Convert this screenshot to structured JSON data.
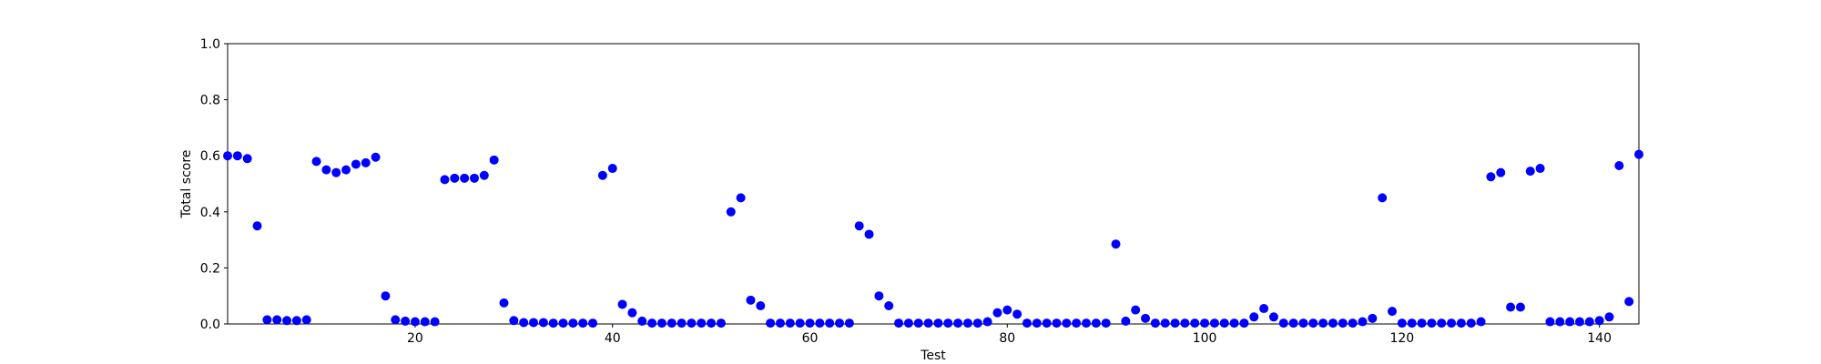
{
  "chart_data": {
    "type": "scatter",
    "title": "",
    "xlabel": "Test",
    "ylabel": "Total score",
    "xlim": [
      1,
      144
    ],
    "ylim": [
      0.0,
      1.0
    ],
    "x_ticks": [
      20,
      40,
      60,
      80,
      100,
      120,
      140
    ],
    "x_tick_labels": [
      "20",
      "40",
      "60",
      "80",
      "100",
      "120",
      "140"
    ],
    "y_ticks": [
      0.0,
      0.2,
      0.4,
      0.6,
      0.8,
      1.0
    ],
    "y_tick_labels": [
      "0.0",
      "0.2",
      "0.4",
      "0.6",
      "0.8",
      "1.0"
    ],
    "grid": false,
    "marker_color": "#0000ff",
    "series": [
      {
        "x": [
          1,
          2,
          3,
          4,
          5,
          6,
          7,
          8,
          9,
          10,
          11,
          12,
          13,
          14,
          15,
          16,
          17,
          18,
          19,
          20,
          21,
          22,
          23,
          24,
          25,
          26,
          27,
          28,
          29,
          30,
          31,
          32,
          33,
          34,
          35,
          36,
          37,
          38,
          39,
          40,
          41,
          42,
          43,
          44,
          45,
          46,
          47,
          48,
          49,
          50,
          51,
          52,
          53,
          54,
          55,
          56,
          57,
          58,
          59,
          60,
          61,
          62,
          63,
          64,
          65,
          66,
          67,
          68,
          69,
          70,
          71,
          72,
          73,
          74,
          75,
          76,
          77,
          78,
          79,
          80,
          81,
          82,
          83,
          84,
          85,
          86,
          87,
          88,
          89,
          90,
          91,
          92,
          93,
          94,
          95,
          96,
          97,
          98,
          99,
          100,
          101,
          102,
          103,
          104,
          105,
          106,
          107,
          108,
          109,
          110,
          111,
          112,
          113,
          114,
          115,
          116,
          117,
          118,
          119,
          120,
          121,
          122,
          123,
          124,
          125,
          126,
          127,
          128,
          129,
          130,
          131,
          132,
          133,
          134,
          135,
          136,
          137,
          138,
          139,
          140,
          141,
          142,
          143,
          144
        ],
        "y": [
          0.6,
          0.6,
          0.59,
          0.35,
          0.015,
          0.015,
          0.012,
          0.012,
          0.015,
          0.58,
          0.55,
          0.54,
          0.55,
          0.57,
          0.575,
          0.595,
          0.1,
          0.015,
          0.01,
          0.008,
          0.008,
          0.008,
          0.515,
          0.52,
          0.52,
          0.52,
          0.53,
          0.585,
          0.075,
          0.012,
          0.005,
          0.005,
          0.005,
          0.003,
          0.003,
          0.003,
          0.003,
          0.003,
          0.53,
          0.555,
          0.07,
          0.04,
          0.01,
          0.003,
          0.003,
          0.003,
          0.003,
          0.003,
          0.003,
          0.003,
          0.003,
          0.4,
          0.45,
          0.085,
          0.065,
          0.003,
          0.003,
          0.003,
          0.003,
          0.003,
          0.003,
          0.003,
          0.003,
          0.003,
          0.35,
          0.32,
          0.1,
          0.065,
          0.003,
          0.003,
          0.003,
          0.003,
          0.003,
          0.003,
          0.003,
          0.003,
          0.003,
          0.008,
          0.04,
          0.05,
          0.035,
          0.003,
          0.003,
          0.003,
          0.003,
          0.003,
          0.003,
          0.003,
          0.003,
          0.003,
          0.285,
          0.01,
          0.05,
          0.02,
          0.003,
          0.003,
          0.003,
          0.003,
          0.003,
          0.003,
          0.003,
          0.003,
          0.003,
          0.003,
          0.025,
          0.055,
          0.025,
          0.003,
          0.003,
          0.003,
          0.003,
          0.003,
          0.003,
          0.003,
          0.003,
          0.008,
          0.02,
          0.45,
          0.045,
          0.003,
          0.003,
          0.003,
          0.003,
          0.003,
          0.003,
          0.003,
          0.003,
          0.008,
          0.525,
          0.54,
          0.06,
          0.06,
          0.545,
          0.555,
          0.008,
          0.008,
          0.008,
          0.008,
          0.008,
          0.012,
          0.025,
          0.565,
          0.08,
          0.605
        ]
      }
    ]
  }
}
